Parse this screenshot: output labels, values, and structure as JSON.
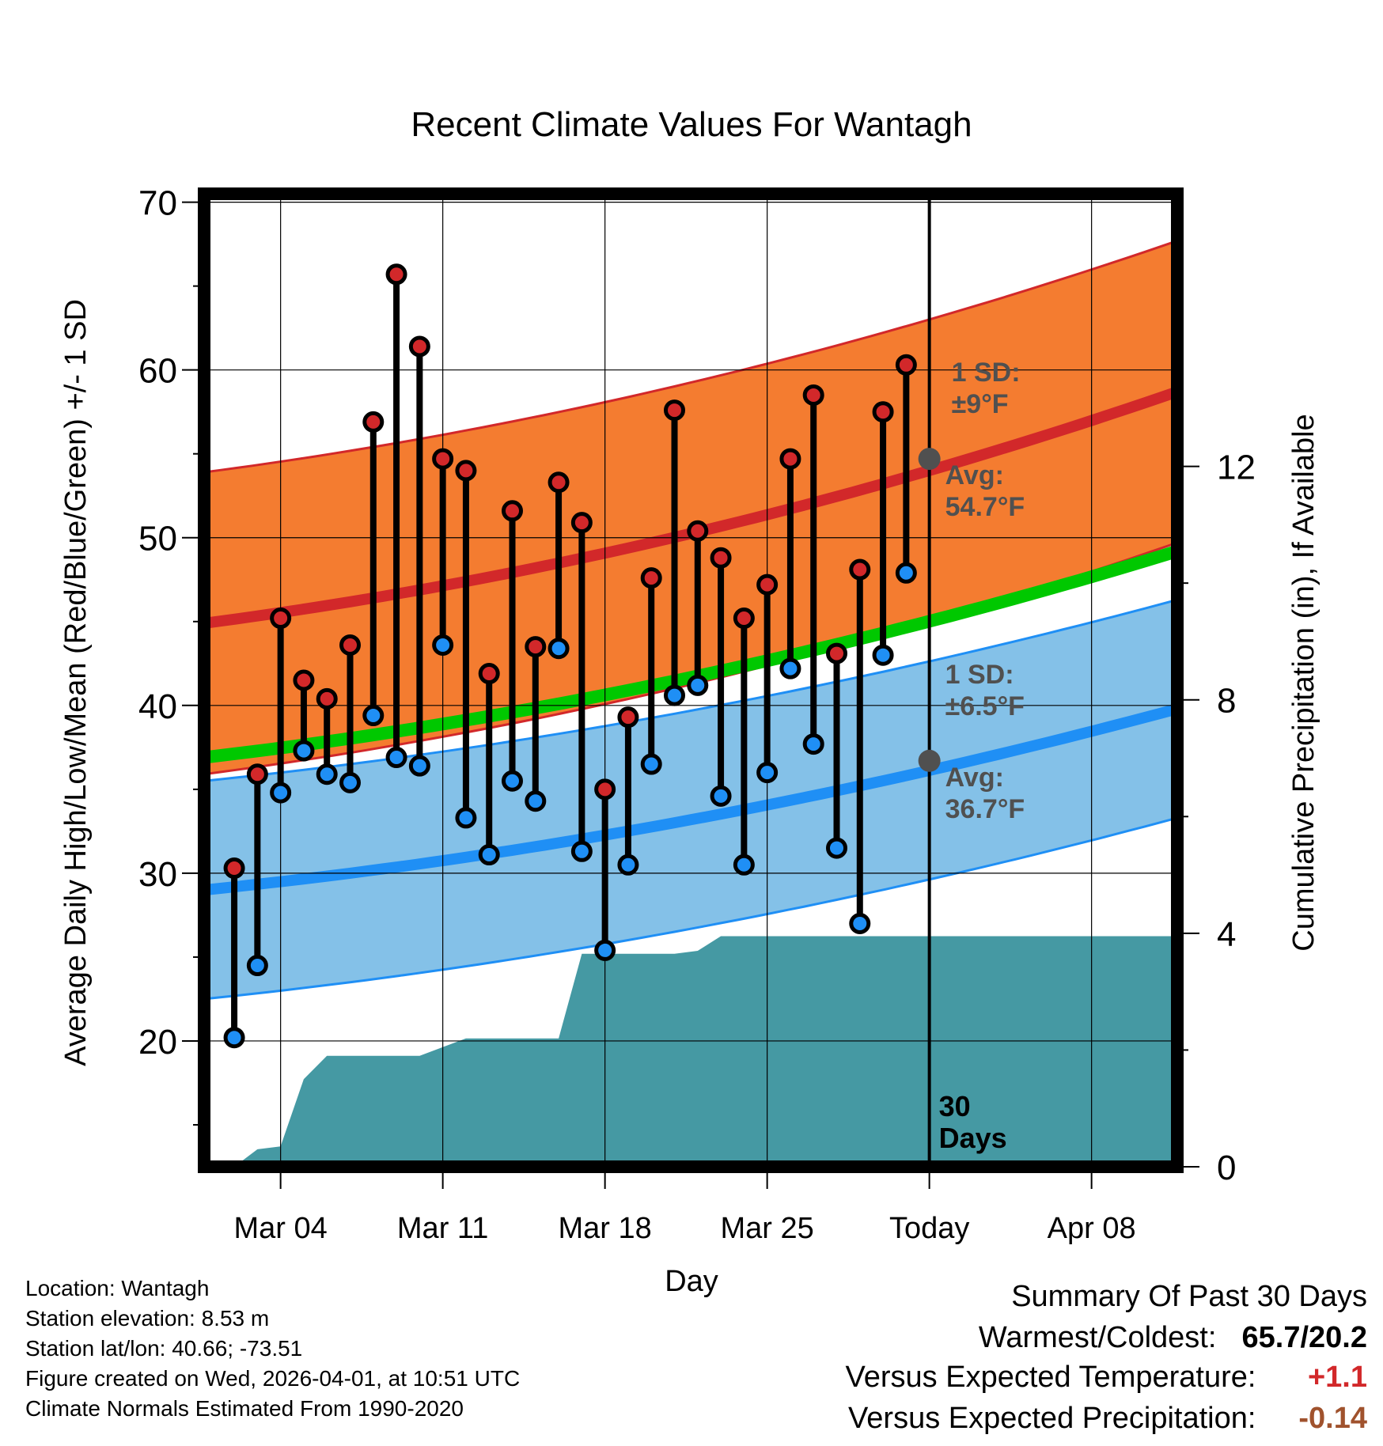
{
  "chart_data": {
    "type": "line",
    "title": "Recent Climate Values For Wantagh",
    "xlabel": "Day",
    "ylabel": "Average Daily High/Low/Mean (Red/Blue/Green) +/- 1 SD",
    "y2label": "Cumulative Precipitation (in), If Available",
    "x_range_days": [
      -31.3,
      10.7
    ],
    "ylim": [
      12.5,
      70.5
    ],
    "y2lim": [
      0,
      16.67
    ],
    "x_ticks": [
      {
        "day": -28,
        "label": "Mar 04"
      },
      {
        "day": -21,
        "label": "Mar 11"
      },
      {
        "day": -14,
        "label": "Mar 18"
      },
      {
        "day": -7,
        "label": "Mar 25"
      },
      {
        "day": 0,
        "label": "Today"
      },
      {
        "day": 7,
        "label": "Apr 08"
      }
    ],
    "y_ticks": [
      20,
      30,
      40,
      50,
      60,
      70
    ],
    "y2_ticks": [
      0,
      4,
      8,
      12
    ],
    "normal_high": {
      "start": 44.9,
      "end": 58.7,
      "sd_label": "1 SD:",
      "sd_value": "±9°F",
      "avg_label": "Avg:",
      "avg_value": "54.7°F",
      "today_avg": 54.7
    },
    "normal_low": {
      "start": 29.0,
      "end": 39.8,
      "sd_label": "1 SD:",
      "sd_value": "±6.5°F",
      "avg_label": "Avg:",
      "avg_value": "36.7°F",
      "today_avg": 36.7
    },
    "normal_mean": {
      "start": 36.9,
      "end": 49.2
    },
    "daily": [
      {
        "day": -30,
        "high": 30.3,
        "low": 20.2
      },
      {
        "day": -29,
        "high": 35.9,
        "low": 24.5
      },
      {
        "day": -28,
        "high": 45.2,
        "low": 34.8
      },
      {
        "day": -27,
        "high": 41.5,
        "low": 37.3
      },
      {
        "day": -26,
        "high": 40.4,
        "low": 35.9
      },
      {
        "day": -25,
        "high": 43.6,
        "low": 35.4
      },
      {
        "day": -24,
        "high": 56.9,
        "low": 39.4
      },
      {
        "day": -23,
        "high": 65.7,
        "low": 36.9
      },
      {
        "day": -22,
        "high": 61.4,
        "low": 36.4
      },
      {
        "day": -21,
        "high": 54.7,
        "low": 43.6
      },
      {
        "day": -20,
        "high": 54.0,
        "low": 33.3
      },
      {
        "day": -19,
        "high": 41.9,
        "low": 31.1
      },
      {
        "day": -18,
        "high": 51.6,
        "low": 35.5
      },
      {
        "day": -17,
        "high": 43.5,
        "low": 34.3
      },
      {
        "day": -16,
        "high": 53.3,
        "low": 43.4
      },
      {
        "day": -15,
        "high": 50.9,
        "low": 31.3
      },
      {
        "day": -14,
        "high": 35.0,
        "low": 25.4
      },
      {
        "day": -13,
        "high": 39.3,
        "low": 30.5
      },
      {
        "day": -12,
        "high": 47.6,
        "low": 36.5
      },
      {
        "day": -11,
        "high": 57.6,
        "low": 40.6
      },
      {
        "day": -10,
        "high": 50.4,
        "low": 41.2
      },
      {
        "day": -9,
        "high": 48.8,
        "low": 34.6
      },
      {
        "day": -8,
        "high": 45.2,
        "low": 30.5
      },
      {
        "day": -7,
        "high": 47.2,
        "low": 36.0
      },
      {
        "day": -6,
        "high": 54.7,
        "low": 42.2
      },
      {
        "day": -5,
        "high": 58.5,
        "low": 37.7
      },
      {
        "day": -4,
        "high": 43.1,
        "low": 31.5
      },
      {
        "day": -3,
        "high": 48.1,
        "low": 27.0
      },
      {
        "day": -2,
        "high": 57.5,
        "low": 43.0
      },
      {
        "day": -1,
        "high": 60.3,
        "low": 47.9
      }
    ],
    "precip_cumulative": [
      {
        "day": -31.3,
        "value": 0
      },
      {
        "day": -30,
        "value": 0
      },
      {
        "day": -29,
        "value": 0.3
      },
      {
        "day": -28,
        "value": 0.35
      },
      {
        "day": -27,
        "value": 1.5
      },
      {
        "day": -26,
        "value": 1.9
      },
      {
        "day": -22,
        "value": 1.9
      },
      {
        "day": -21,
        "value": 2.05
      },
      {
        "day": -20,
        "value": 2.2
      },
      {
        "day": -16,
        "value": 2.2
      },
      {
        "day": -15,
        "value": 3.65
      },
      {
        "day": -11,
        "value": 3.65
      },
      {
        "day": -10,
        "value": 3.7
      },
      {
        "day": -9,
        "value": 3.95
      },
      {
        "day": 10.7,
        "value": 3.95
      }
    ],
    "today_label_1": "30",
    "today_label_2": "Days"
  },
  "info": {
    "location": "Location: Wantagh",
    "elevation": "Station elevation: 8.53 m",
    "latlon": "Station lat/lon: 40.66; -73.51",
    "created": "Figure created on Wed, 2026-04-01, at 10:51 UTC",
    "normals": "Climate Normals Estimated From 1990-2020"
  },
  "summary": {
    "title": "Summary Of Past 30 Days",
    "warm_label": "Warmest/Coldest:",
    "warm_value": "65.7/20.2",
    "temp_label": "Versus Expected Temperature:",
    "temp_value": "+1.1",
    "precip_label": "Versus Expected Precipitation:",
    "precip_value": "-0.14"
  },
  "colors": {
    "high_band": "#f47c30",
    "high_line": "#d2282a",
    "low_band": "#84c1e8",
    "low_line": "#1f8ff5",
    "mean_line": "#00c800",
    "precip": "#4599a3",
    "temp_value": "#d2282a",
    "precip_value": "#a0522d",
    "annot": "#505050"
  }
}
